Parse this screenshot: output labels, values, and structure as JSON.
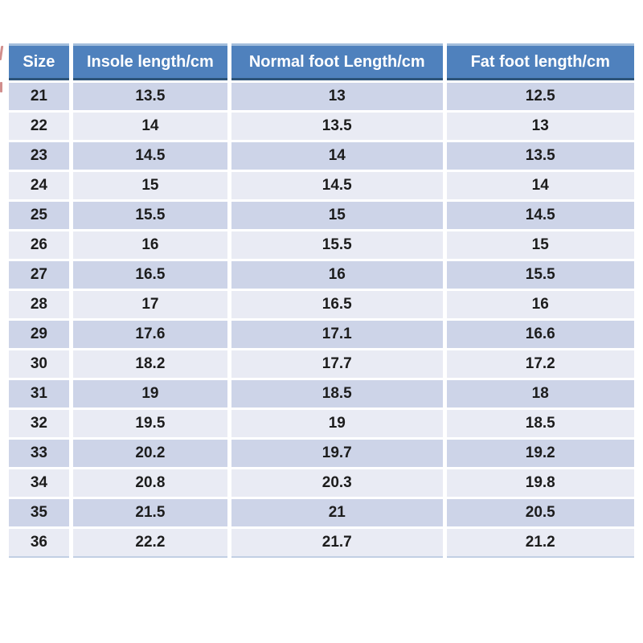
{
  "chart_data": {
    "type": "table",
    "title": "",
    "columns": [
      "Size",
      "Insole length/cm",
      "Normal foot Length/cm",
      "Fat foot length/cm"
    ],
    "rows": [
      [
        "21",
        "13.5",
        "13",
        "12.5"
      ],
      [
        "22",
        "14",
        "13.5",
        "13"
      ],
      [
        "23",
        "14.5",
        "14",
        "13.5"
      ],
      [
        "24",
        "15",
        "14.5",
        "14"
      ],
      [
        "25",
        "15.5",
        "15",
        "14.5"
      ],
      [
        "26",
        "16",
        "15.5",
        "15"
      ],
      [
        "27",
        "16.5",
        "16",
        "15.5"
      ],
      [
        "28",
        "17",
        "16.5",
        "16"
      ],
      [
        "29",
        "17.6",
        "17.1",
        "16.6"
      ],
      [
        "30",
        "18.2",
        "17.7",
        "17.2"
      ],
      [
        "31",
        "19",
        "18.5",
        "18"
      ],
      [
        "32",
        "19.5",
        "19",
        "18.5"
      ],
      [
        "33",
        "20.2",
        "19.7",
        "19.2"
      ],
      [
        "34",
        "20.8",
        "20.3",
        "19.8"
      ],
      [
        "35",
        "21.5",
        "21",
        "20.5"
      ],
      [
        "36",
        "22.2",
        "21.7",
        "21.2"
      ]
    ],
    "layout": {
      "grid": "white gaps between cells",
      "row_striping": "first data row dark, alternating"
    }
  },
  "colors": {
    "header_bg": "#4F81BD",
    "header_text": "#FFFFFF",
    "header_top_border": "#A3BEDC",
    "header_bottom_border": "#2C5379",
    "row_odd_bg": "#CDD4E8",
    "row_even_bg": "#E9EBF4",
    "cell_text": "#1C1C1C",
    "outer_border": "#C2CFE4",
    "artifact_red": "#B8524E",
    "page_bg": "#FFFFFF"
  }
}
